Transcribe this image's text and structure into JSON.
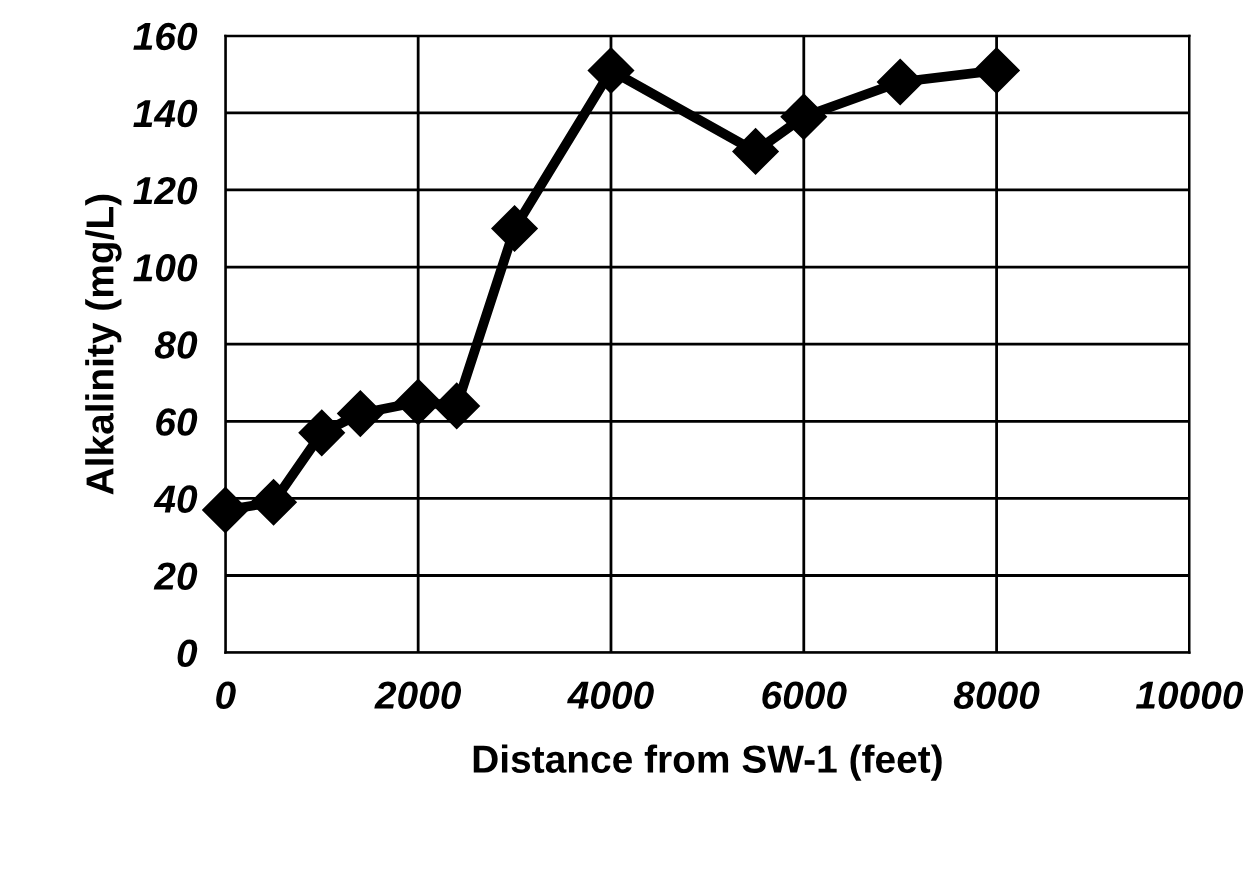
{
  "chart_data": {
    "type": "line",
    "xlabel": "Distance from SW-1 (feet)",
    "ylabel": "Alkalinity (mg/L)",
    "x": [
      0,
      500,
      1000,
      1400,
      2000,
      2400,
      3000,
      4000,
      5500,
      6000,
      7000,
      8000
    ],
    "series": [
      {
        "color": "#000000",
        "values": [
          37,
          39,
          57,
          62,
          65,
          64,
          110,
          151,
          130,
          139,
          148,
          151
        ]
      }
    ],
    "xlim": [
      0,
      10000
    ],
    "xticks": [
      0,
      2000,
      4000,
      6000,
      8000,
      10000
    ],
    "ylim": [
      0,
      160
    ],
    "yticks": [
      0,
      20,
      40,
      60,
      80,
      100,
      120,
      140,
      160
    ],
    "grid": true,
    "marker": "diamond",
    "line_style": "solid",
    "legend": false
  }
}
